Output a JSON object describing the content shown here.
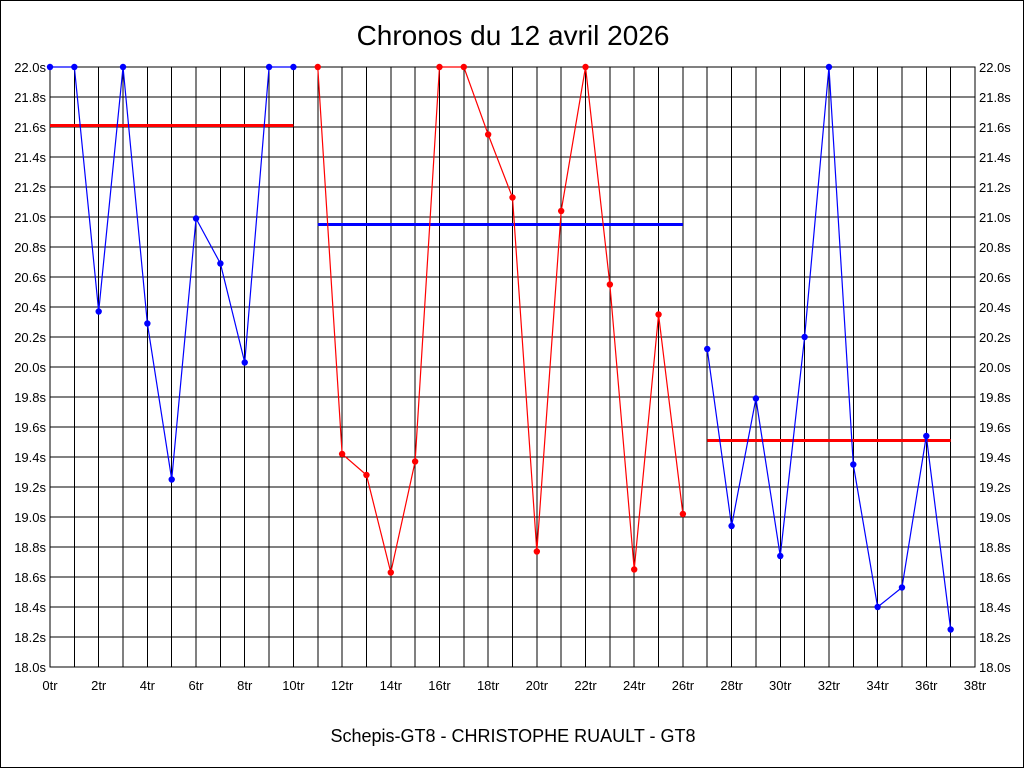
{
  "chart_data": {
    "type": "line",
    "title": "Chronos du 12 avril 2026",
    "footer": "Schepis-GT8 - CHRISTOPHE RUAULT - GT8",
    "xlabel": "",
    "ylabel": "",
    "xlim": [
      0,
      38
    ],
    "ylim": [
      18.0,
      22.0
    ],
    "x_ticks": [
      "0tr",
      "2tr",
      "4tr",
      "6tr",
      "8tr",
      "10tr",
      "12tr",
      "14tr",
      "16tr",
      "18tr",
      "20tr",
      "22tr",
      "24tr",
      "26tr",
      "28tr",
      "30tr",
      "32tr",
      "34tr",
      "36tr",
      "38tr"
    ],
    "y_ticks": [
      "22.0s",
      "21.8s",
      "21.6s",
      "21.4s",
      "21.2s",
      "21.0s",
      "20.8s",
      "20.6s",
      "20.4s",
      "20.2s",
      "20.0s",
      "19.8s",
      "19.6s",
      "19.4s",
      "19.2s",
      "19.0s",
      "18.8s",
      "18.6s",
      "18.4s",
      "18.2s",
      "18.0s"
    ],
    "y_tick_values": [
      22.0,
      21.8,
      21.6,
      21.4,
      21.2,
      21.0,
      20.8,
      20.6,
      20.4,
      20.2,
      20.0,
      19.8,
      19.6,
      19.4,
      19.2,
      19.0,
      18.8,
      18.6,
      18.4,
      18.2,
      18.0
    ],
    "grid": true,
    "series": [
      {
        "color": "#0000ff",
        "x": [
          0,
          1,
          2,
          3,
          4,
          5,
          6,
          7,
          8,
          9,
          10
        ],
        "values": [
          22.0,
          22.0,
          20.37,
          22.0,
          20.29,
          19.25,
          20.99,
          20.69,
          20.03,
          22.0,
          22.0
        ]
      },
      {
        "color": "#ff0000",
        "x": [
          11,
          12,
          13,
          14,
          15,
          16,
          17,
          18,
          19,
          20,
          21,
          22,
          23,
          24,
          25,
          26
        ],
        "values": [
          22.0,
          19.42,
          19.28,
          18.63,
          19.37,
          22.0,
          22.0,
          21.55,
          21.13,
          18.77,
          21.04,
          22.0,
          20.55,
          18.65,
          20.35,
          19.02
        ]
      },
      {
        "color": "#0000ff",
        "x": [
          27,
          28,
          29,
          30,
          31,
          32,
          33,
          34,
          35,
          36,
          37
        ],
        "values": [
          20.12,
          18.94,
          19.79,
          18.74,
          20.2,
          22.0,
          19.35,
          18.4,
          18.53,
          19.54,
          18.25
        ]
      }
    ],
    "averages": [
      {
        "color": "#ff0000",
        "x_start": 0,
        "x_end": 10,
        "value": 21.61
      },
      {
        "color": "#0000ff",
        "x_start": 11,
        "x_end": 26,
        "value": 20.95
      },
      {
        "color": "#ff0000",
        "x_start": 27,
        "x_end": 37,
        "value": 19.51
      }
    ]
  }
}
